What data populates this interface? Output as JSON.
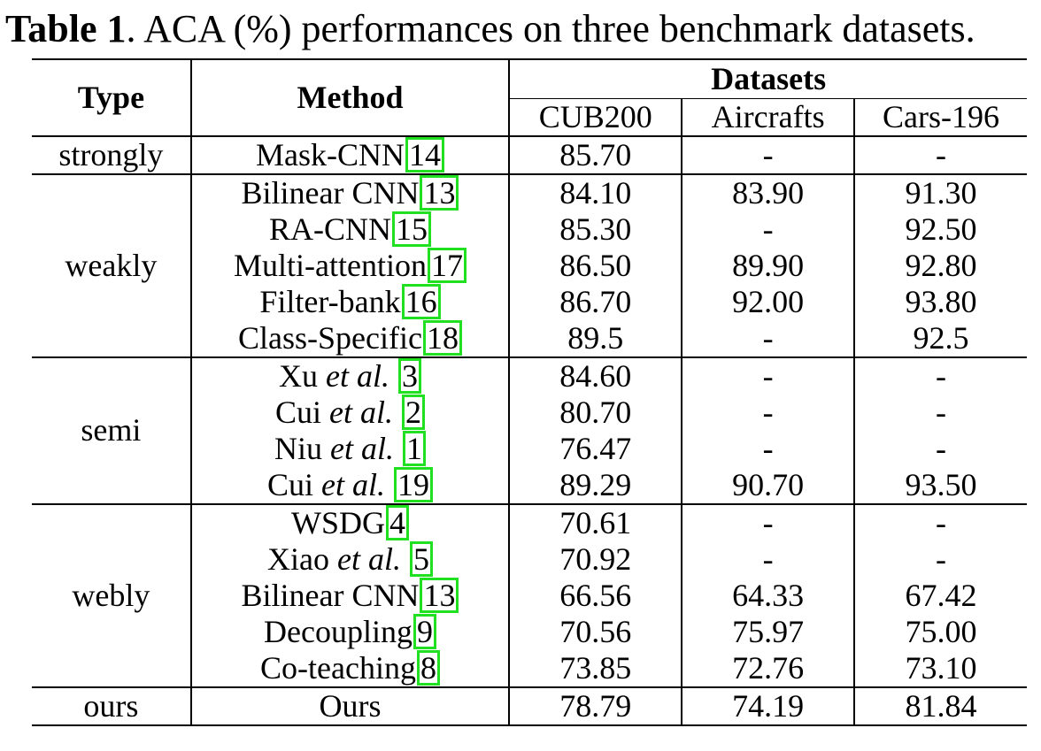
{
  "caption": {
    "label": "Table 1",
    "text": ". ACA (%) performances on three benchmark datasets."
  },
  "header": {
    "type": "Type",
    "method": "Method",
    "datasets": "Datasets",
    "cub": "CUB200",
    "aircrafts": "Aircrafts",
    "cars": "Cars-196"
  },
  "rows": [
    {
      "type": "strongly",
      "method": "Mask-CNN",
      "etal": "",
      "cite": "14",
      "cub": "85.70",
      "air": "-",
      "cars": "-"
    },
    {
      "type": "weakly",
      "method": "Bilinear CNN",
      "etal": "",
      "cite": "13",
      "cub": "84.10",
      "air": "83.90",
      "cars": "91.30"
    },
    {
      "type": "",
      "method": "RA-CNN",
      "etal": "",
      "cite": "15",
      "cub": "85.30",
      "air": "-",
      "cars": "92.50"
    },
    {
      "type": "",
      "method": "Multi-attention",
      "etal": "",
      "cite": "17",
      "cub": "86.50",
      "air": "89.90",
      "cars": "92.80"
    },
    {
      "type": "",
      "method": "Filter-bank",
      "etal": "",
      "cite": "16",
      "cub": "86.70",
      "air": "92.00",
      "cars": "93.80"
    },
    {
      "type": "",
      "method": "Class-Specific",
      "etal": "",
      "cite": "18",
      "cub": "89.5",
      "air": "-",
      "cars": "92.5"
    },
    {
      "type": "semi",
      "method": "Xu ",
      "etal": "et al.",
      "cite": "3",
      "cub": "84.60",
      "air": "-",
      "cars": "-"
    },
    {
      "type": "",
      "method": "Cui ",
      "etal": "et al.",
      "cite": "2",
      "cub": "80.70",
      "air": "-",
      "cars": "-"
    },
    {
      "type": "",
      "method": "Niu ",
      "etal": "et al.",
      "cite": "1",
      "cub": "76.47",
      "air": "-",
      "cars": "-"
    },
    {
      "type": "",
      "method": "Cui ",
      "etal": "et al.",
      "cite": "19",
      "cub": "89.29",
      "air": "90.70",
      "cars": "93.50"
    },
    {
      "type": "webly",
      "method": "WSDG",
      "etal": "",
      "cite": "4",
      "cub": "70.61",
      "air": "-",
      "cars": "-"
    },
    {
      "type": "",
      "method": "Xiao ",
      "etal": "et al.",
      "cite": "5",
      "cub": "70.92",
      "air": "-",
      "cars": "-"
    },
    {
      "type": "",
      "method": "Bilinear CNN",
      "etal": "",
      "cite": "13",
      "cub": "66.56",
      "air": "64.33",
      "cars": "67.42"
    },
    {
      "type": "",
      "method": "Decoupling",
      "etal": "",
      "cite": "9",
      "cub": "70.56",
      "air": "75.97",
      "cars": "75.00"
    },
    {
      "type": "",
      "method": "Co-teaching",
      "etal": "",
      "cite": "8",
      "cub": "73.85",
      "air": "72.76",
      "cars": "73.10"
    },
    {
      "type": "ours",
      "method": "Ours",
      "etal": "",
      "cite": "",
      "cub": "78.79",
      "air": "74.19",
      "cars": "81.84"
    }
  ],
  "colors": {
    "citation_box": "#21e021",
    "text": "#000000"
  }
}
